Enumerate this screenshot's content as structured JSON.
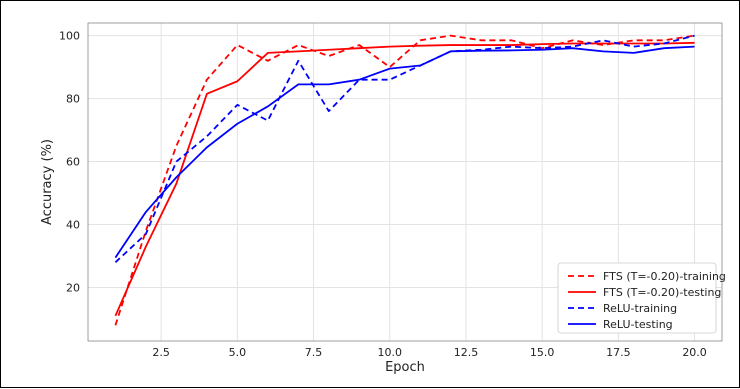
{
  "chart_data": {
    "type": "line",
    "xlabel": "Epoch",
    "ylabel": "Accuracy (%)",
    "xlim": [
      0.1,
      20.9
    ],
    "ylim": [
      3,
      104
    ],
    "xticks": [
      "2.5",
      "5.0",
      "7.5",
      "10.0",
      "12.5",
      "15.0",
      "17.5",
      "20.0"
    ],
    "yticks": [
      "20",
      "40",
      "60",
      "80",
      "100"
    ],
    "grid": true,
    "legend_position": "lower-right",
    "x": [
      1,
      2,
      3,
      4,
      5,
      6,
      7,
      8,
      9,
      10,
      11,
      12,
      13,
      14,
      15,
      16,
      17,
      18,
      19,
      20
    ],
    "series": [
      {
        "name": "FTS (T=-0.20)-training",
        "color": "#ff0000",
        "linestyle": "dashed",
        "values": [
          8,
          38,
          65,
          86,
          97,
          92,
          97,
          93.5,
          97,
          90,
          98.5,
          100,
          98.5,
          98.5,
          96,
          98.5,
          97,
          98.5,
          98.5,
          100
        ]
      },
      {
        "name": "FTS (T=-0.20)-testing",
        "color": "#ff0000",
        "linestyle": "solid",
        "values": [
          11,
          33,
          53,
          81.5,
          85.5,
          94.5,
          95,
          95.5,
          96,
          96.5,
          96.8,
          97,
          97,
          97,
          97.3,
          97.5,
          97.5,
          97.5,
          97.5,
          97.7
        ]
      },
      {
        "name": "ReLU-training",
        "color": "#0000ff",
        "linestyle": "dashed",
        "values": [
          28,
          37,
          60,
          68,
          78,
          73,
          92,
          76,
          86,
          86,
          90.5,
          95,
          95.5,
          96.5,
          96,
          96.5,
          98.5,
          96.5,
          97.5,
          100
        ]
      },
      {
        "name": "ReLU-testing",
        "color": "#0000ff",
        "linestyle": "solid",
        "values": [
          29.5,
          44,
          55,
          64.5,
          72,
          77.5,
          84.5,
          84.5,
          86,
          89.5,
          90.5,
          95,
          95.2,
          95.3,
          95.5,
          96,
          95,
          94.5,
          96,
          96.5
        ]
      }
    ]
  }
}
